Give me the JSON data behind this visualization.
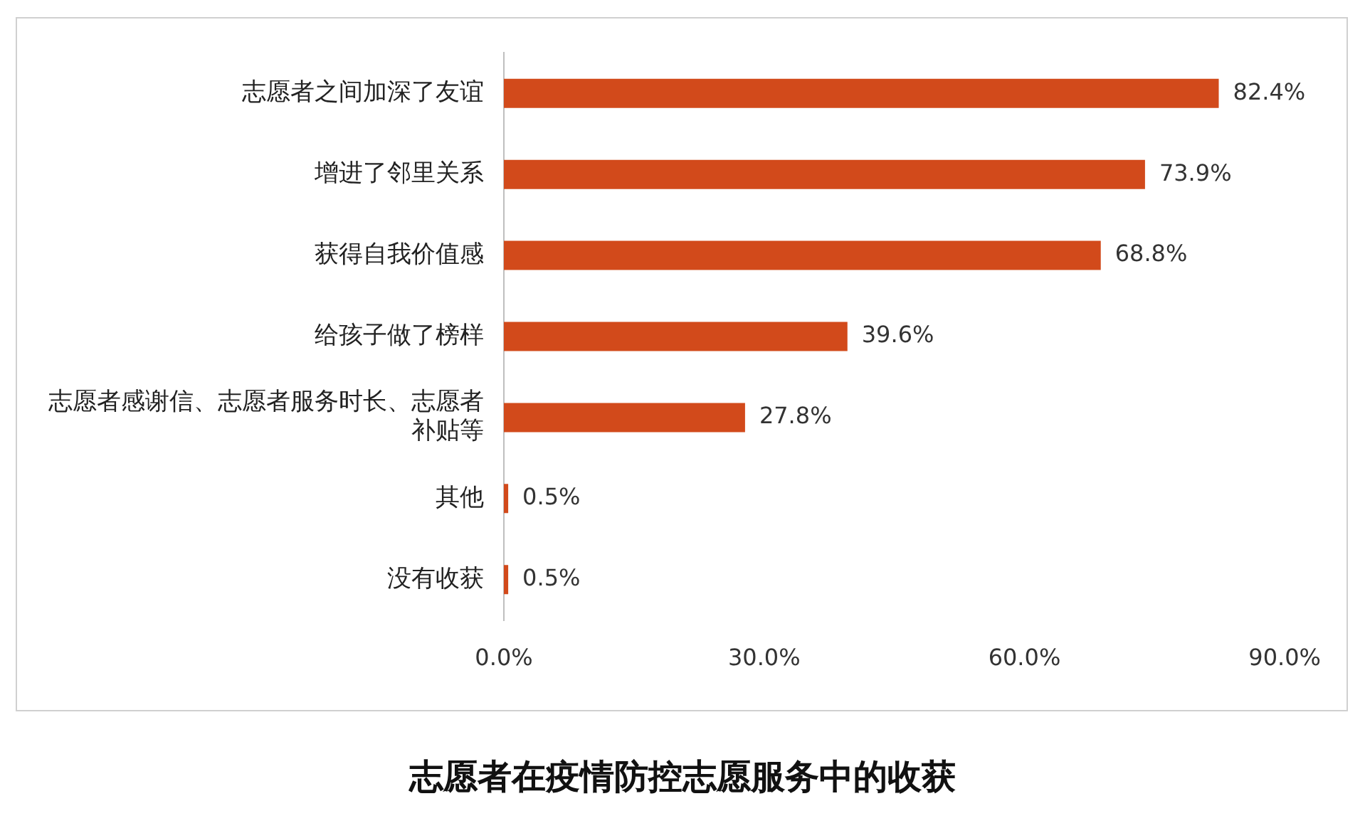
{
  "chart_data": {
    "type": "bar",
    "orientation": "horizontal",
    "title": "志愿者在疫情防控志愿服务中的收获",
    "categories": [
      "志愿者之间加深了友谊",
      "增进了邻里关系",
      "获得自我价值感",
      "给孩子做了榜样",
      "志愿者感谢信、志愿者服务时长、志愿者补贴等",
      "其他",
      "没有收获"
    ],
    "values": [
      82.4,
      73.9,
      68.8,
      39.6,
      27.8,
      0.5,
      0.5
    ],
    "value_labels": [
      "82.4%",
      "73.9%",
      "68.8%",
      "39.6%",
      "27.8%",
      "0.5%",
      "0.5%"
    ],
    "color": "#d24a1b",
    "xlim": [
      0,
      90
    ],
    "xticks": [
      {
        "value": 0,
        "label": "0.0%"
      },
      {
        "value": 30,
        "label": "30.0%"
      },
      {
        "value": 60,
        "label": "60.0%"
      },
      {
        "value": 90,
        "label": "90.0%"
      }
    ],
    "grid": false,
    "legend": false
  }
}
